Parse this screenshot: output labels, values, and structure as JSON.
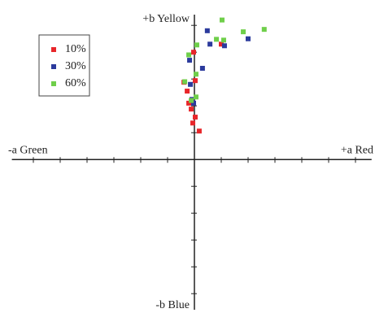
{
  "chart_data": {
    "type": "scatter",
    "axis_labels": {
      "top": "+b Yellow",
      "bottom": "-b Blue",
      "left": "-a Green",
      "right": "+a Red"
    },
    "xlim": [
      -68,
      66
    ],
    "ylim": [
      -56,
      54
    ],
    "xticks": [
      -60,
      -50,
      -40,
      -30,
      -20,
      -10,
      10,
      20,
      30,
      40,
      50,
      60
    ],
    "yticks": [
      -50,
      -40,
      -30,
      -20,
      -10,
      10,
      20,
      30,
      40,
      50
    ],
    "legend": "upper left",
    "series": [
      {
        "name": "10%",
        "color": "#e8262a",
        "x": [
          -0.3,
          10,
          0.3,
          -2.7,
          -2.1,
          -1.2,
          0.3,
          -0.6,
          1.8,
          -3.9
        ],
        "values": [
          40,
          43,
          29.4,
          25.5,
          21,
          18.8,
          15.8,
          13.6,
          10.6,
          28.8
        ]
      },
      {
        "name": "30%",
        "color": "#2b3a9c",
        "x": [
          4.8,
          5.8,
          11.2,
          20,
          3,
          -1.8,
          -1.5,
          -0.9,
          -0.3
        ],
        "values": [
          48,
          43,
          42.4,
          45,
          34,
          37,
          28,
          22.4,
          21
        ]
      },
      {
        "name": "60%",
        "color": "#6fcf4a",
        "x": [
          10.3,
          18.2,
          26,
          8.2,
          10.9,
          0.9,
          -2.1,
          0.6,
          -3.6,
          0.6,
          -1.2
        ],
        "values": [
          52,
          47.6,
          48.5,
          44.8,
          44.5,
          42.7,
          39,
          31.8,
          29,
          23.3,
          22
        ]
      }
    ]
  }
}
